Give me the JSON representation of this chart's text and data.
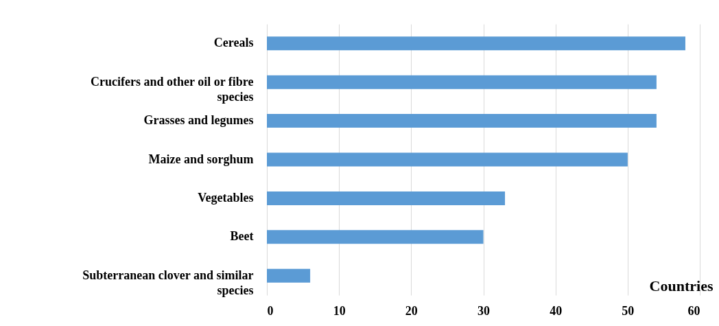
{
  "chart_data": {
    "type": "bar",
    "orientation": "horizontal",
    "xlabel": "Countries",
    "categories": [
      "Cereals",
      "Crucifers and other oil or fibre species",
      "Grasses and legumes",
      "Maize and sorghum",
      "Vegetables",
      "Beet",
      "Subterranean clover and similar species"
    ],
    "values": [
      58,
      54,
      54,
      50,
      33,
      30,
      6
    ],
    "color": "#5b9bd5",
    "xlim": [
      0,
      60
    ],
    "xticks": [
      0,
      10,
      20,
      30,
      40,
      50,
      60
    ],
    "grid": "x"
  }
}
